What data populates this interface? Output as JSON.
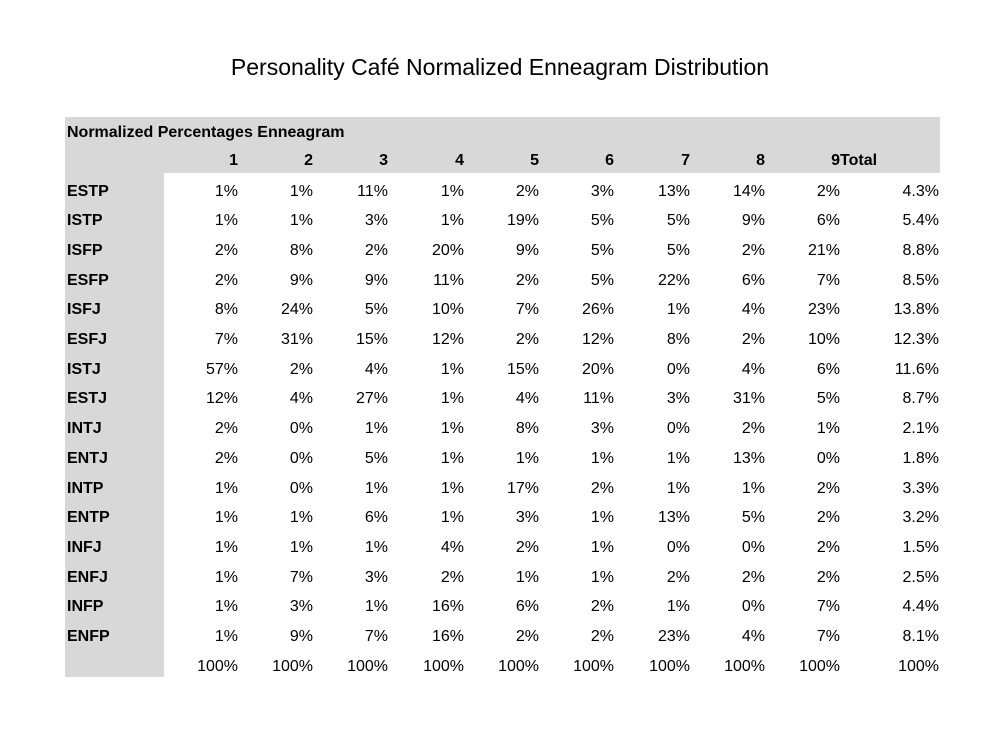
{
  "title": "Personality Café Normalized Enneagram Distribution",
  "table": {
    "heading": "Normalized Percentages Enneagram",
    "columns": [
      "1",
      "2",
      "3",
      "4",
      "5",
      "6",
      "7",
      "8",
      "9",
      "Total"
    ],
    "rows": [
      {
        "label": "ESTP",
        "values": [
          "1%",
          "1%",
          "11%",
          "1%",
          "2%",
          "3%",
          "13%",
          "14%",
          "2%",
          "4.3%"
        ]
      },
      {
        "label": "ISTP",
        "values": [
          "1%",
          "1%",
          "3%",
          "1%",
          "19%",
          "5%",
          "5%",
          "9%",
          "6%",
          "5.4%"
        ]
      },
      {
        "label": "ISFP",
        "values": [
          "2%",
          "8%",
          "2%",
          "20%",
          "9%",
          "5%",
          "5%",
          "2%",
          "21%",
          "8.8%"
        ]
      },
      {
        "label": "ESFP",
        "values": [
          "2%",
          "9%",
          "9%",
          "11%",
          "2%",
          "5%",
          "22%",
          "6%",
          "7%",
          "8.5%"
        ]
      },
      {
        "label": "ISFJ",
        "values": [
          "8%",
          "24%",
          "5%",
          "10%",
          "7%",
          "26%",
          "1%",
          "4%",
          "23%",
          "13.8%"
        ]
      },
      {
        "label": "ESFJ",
        "values": [
          "7%",
          "31%",
          "15%",
          "12%",
          "2%",
          "12%",
          "8%",
          "2%",
          "10%",
          "12.3%"
        ]
      },
      {
        "label": "ISTJ",
        "values": [
          "57%",
          "2%",
          "4%",
          "1%",
          "15%",
          "20%",
          "0%",
          "4%",
          "6%",
          "11.6%"
        ]
      },
      {
        "label": "ESTJ",
        "values": [
          "12%",
          "4%",
          "27%",
          "1%",
          "4%",
          "11%",
          "3%",
          "31%",
          "5%",
          "8.7%"
        ]
      },
      {
        "label": "INTJ",
        "values": [
          "2%",
          "0%",
          "1%",
          "1%",
          "8%",
          "3%",
          "0%",
          "2%",
          "1%",
          "2.1%"
        ]
      },
      {
        "label": "ENTJ",
        "values": [
          "2%",
          "0%",
          "5%",
          "1%",
          "1%",
          "1%",
          "1%",
          "13%",
          "0%",
          "1.8%"
        ]
      },
      {
        "label": "INTP",
        "values": [
          "1%",
          "0%",
          "1%",
          "1%",
          "17%",
          "2%",
          "1%",
          "1%",
          "2%",
          "3.3%"
        ]
      },
      {
        "label": "ENTP",
        "values": [
          "1%",
          "1%",
          "6%",
          "1%",
          "3%",
          "1%",
          "13%",
          "5%",
          "2%",
          "3.2%"
        ]
      },
      {
        "label": "INFJ",
        "values": [
          "1%",
          "1%",
          "1%",
          "4%",
          "2%",
          "1%",
          "0%",
          "0%",
          "2%",
          "1.5%"
        ]
      },
      {
        "label": "ENFJ",
        "values": [
          "1%",
          "7%",
          "3%",
          "2%",
          "1%",
          "1%",
          "2%",
          "2%",
          "2%",
          "2.5%"
        ]
      },
      {
        "label": "INFP",
        "values": [
          "1%",
          "3%",
          "1%",
          "16%",
          "6%",
          "2%",
          "1%",
          "0%",
          "7%",
          "4.4%"
        ]
      },
      {
        "label": "ENFP",
        "values": [
          "1%",
          "9%",
          "7%",
          "16%",
          "2%",
          "2%",
          "23%",
          "4%",
          "7%",
          "8.1%"
        ]
      },
      {
        "label": "",
        "values": [
          "100%",
          "100%",
          "100%",
          "100%",
          "100%",
          "100%",
          "100%",
          "100%",
          "100%",
          "100%"
        ]
      }
    ]
  }
}
